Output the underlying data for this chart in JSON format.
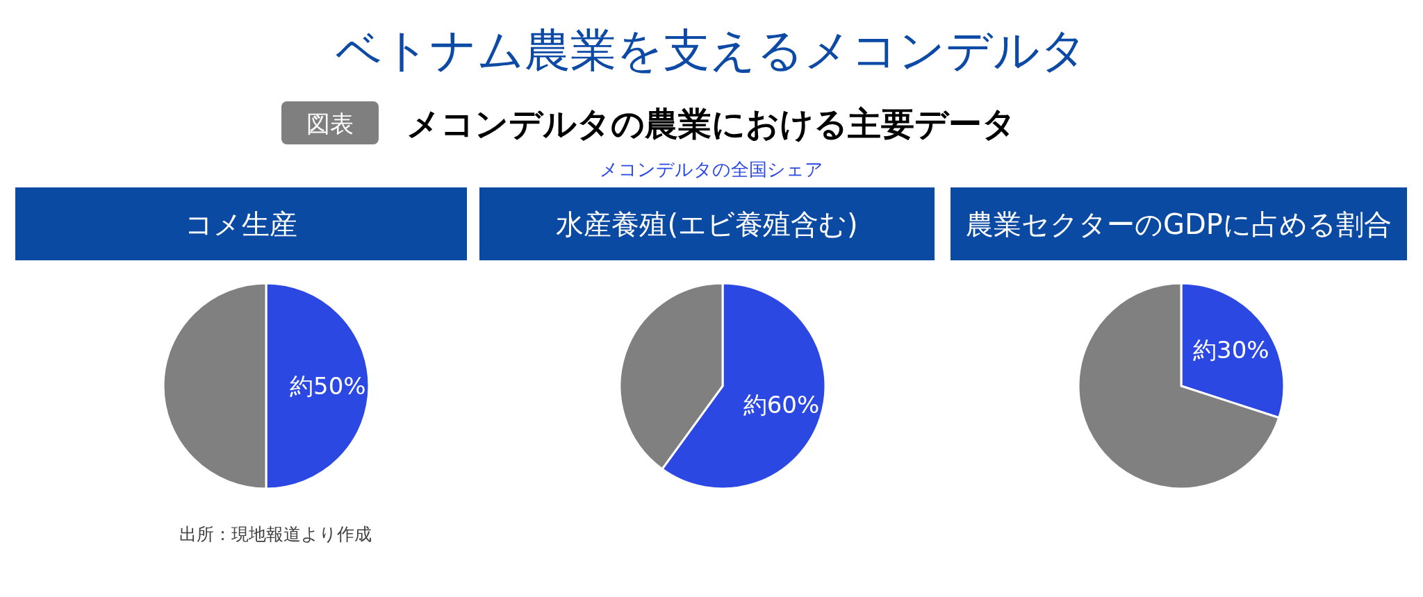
{
  "chart_data": [
    {
      "type": "other",
      "title": "ベトナム農業を支えるメコンデルタ",
      "subtitle": "メコンデルタの農業における主要データ",
      "annotations": [
        "図表",
        "メコンデルタの全国シェア",
        "出所：現地報道より作成"
      ]
    },
    {
      "type": "pie",
      "title": "コメ生産",
      "categories": [
        null,
        null
      ],
      "values": [
        50,
        50
      ],
      "colors": [
        "#2b48e2",
        "#808080"
      ],
      "value_labels": [
        "約50%",
        null
      ]
    },
    {
      "type": "pie",
      "title": "水産養殖(エビ養殖含む)",
      "categories": [
        null,
        null
      ],
      "values": [
        60,
        40
      ],
      "colors": [
        "#2b48e2",
        "#808080"
      ],
      "value_labels": [
        "約60%",
        null
      ]
    },
    {
      "type": "pie",
      "title": "農業セクターのGDPに占める割合",
      "categories": [
        null,
        null
      ],
      "values": [
        30,
        70
      ],
      "colors": [
        "#2b48e2",
        "#808080"
      ],
      "value_labels": [
        "約30%",
        null
      ]
    }
  ]
}
